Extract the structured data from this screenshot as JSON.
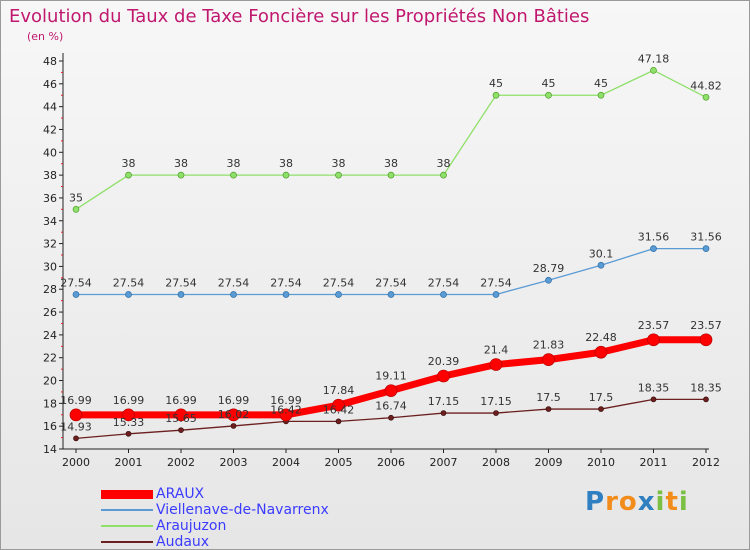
{
  "chart_data": {
    "type": "line",
    "title": "Evolution du Taux de Taxe Foncière sur les Propriétés Non Bâties",
    "ylabel": "(en %)",
    "xlabel": "",
    "ylim": [
      14,
      48
    ],
    "yticks": [
      14,
      16,
      18,
      20,
      22,
      24,
      26,
      28,
      30,
      32,
      34,
      36,
      38,
      40,
      42,
      44,
      46,
      48
    ],
    "categories": [
      "2000",
      "2001",
      "2002",
      "2003",
      "2004",
      "2005",
      "2006",
      "2007",
      "2008",
      "2009",
      "2010",
      "2011",
      "2012"
    ],
    "grid": false,
    "legend_position": "bottom-left",
    "series": [
      {
        "name": "ARAUX",
        "color": "#ff0000",
        "values": [
          16.99,
          16.99,
          16.99,
          16.99,
          16.99,
          17.84,
          19.11,
          20.39,
          21.4,
          21.83,
          22.48,
          23.57,
          23.57
        ],
        "labels": [
          "16.99",
          "16.99",
          "16.99",
          "16.99",
          "16.99",
          "17.84",
          "19.11",
          "20.39",
          "21.4",
          "21.83",
          "22.48",
          "23.57",
          "23.57"
        ]
      },
      {
        "name": "Viellenave-de-Navarrenx",
        "color": "#5b9bd5",
        "values": [
          27.54,
          27.54,
          27.54,
          27.54,
          27.54,
          27.54,
          27.54,
          27.54,
          27.54,
          28.79,
          30.1,
          31.56,
          31.56
        ],
        "labels": [
          "27.54",
          "27.54",
          "27.54",
          "27.54",
          "27.54",
          "27.54",
          "27.54",
          "27.54",
          "27.54",
          "28.79",
          "30.1",
          "31.56",
          "31.56"
        ]
      },
      {
        "name": "Araujuzon",
        "color": "#8fe06a",
        "values": [
          35,
          38,
          38,
          38,
          38,
          38,
          38,
          38,
          45,
          45,
          45,
          47.18,
          44.82
        ],
        "labels": [
          "35",
          "38",
          "38",
          "38",
          "38",
          "38",
          "38",
          "38",
          "45",
          "45",
          "45",
          "47.18",
          "44.82"
        ]
      },
      {
        "name": "Audaux",
        "color": "#6b1f1f",
        "values": [
          14.93,
          15.33,
          15.65,
          16.02,
          16.42,
          16.42,
          16.74,
          17.15,
          17.15,
          17.5,
          17.5,
          18.35,
          18.35
        ],
        "labels": [
          "14.93",
          "15.33",
          "15.65",
          "16.02",
          "16.42",
          "16.42",
          "16.74",
          "17.15",
          "17.15",
          "17.5",
          "17.5",
          "18.35",
          "18.35"
        ]
      }
    ]
  },
  "brand": {
    "letters": [
      "P",
      "r",
      "o",
      "x",
      "i",
      "t",
      "i"
    ],
    "colors": [
      "#2f7fc1",
      "#f28c1a",
      "#f28c1a",
      "#2f7fc1",
      "#7bc043",
      "#f28c1a",
      "#7bc043"
    ]
  }
}
